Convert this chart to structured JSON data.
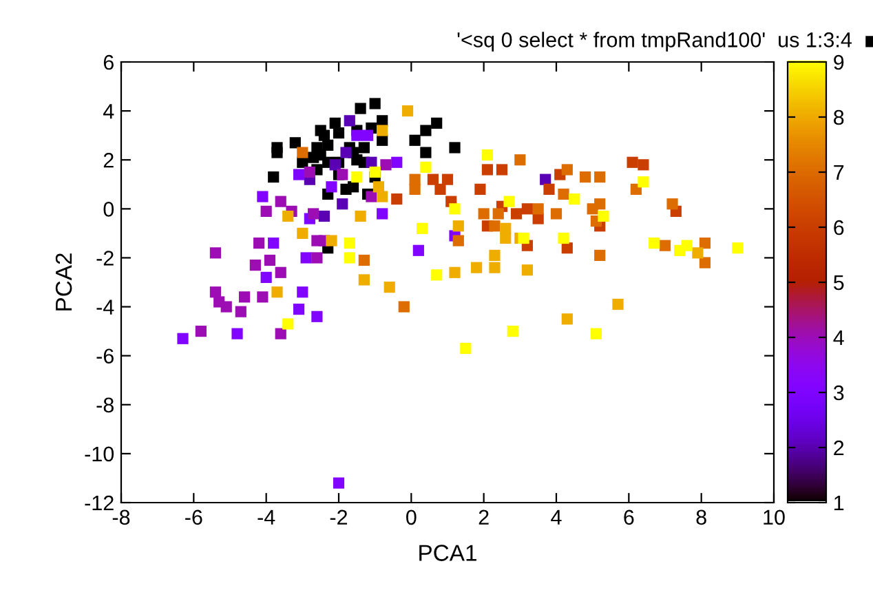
{
  "chart_data": {
    "type": "scatter",
    "xlabel": "PCA1",
    "ylabel": "PCA2",
    "xlim": [
      -8,
      10
    ],
    "ylim": [
      -12,
      6
    ],
    "xticks": [
      -8,
      -6,
      -4,
      -2,
      0,
      2,
      4,
      6,
      8,
      10
    ],
    "yticks": [
      -12,
      -10,
      -8,
      -6,
      -4,
      -2,
      0,
      2,
      4,
      6
    ],
    "clim": [
      1,
      9
    ],
    "cticks": [
      1,
      2,
      3,
      4,
      5,
      6,
      7,
      8,
      9
    ],
    "marker": "square",
    "grid": false,
    "legend": "top right",
    "series": [
      {
        "name": "'<sq 0 select * from tmpRand100'  us 1:3:4",
        "x": [
          -1.0,
          -1.4,
          -2.1,
          -0.8,
          -1.1,
          -1.5,
          -2.5,
          -2.0,
          -2.4,
          -3.2,
          -2.3,
          -3.7,
          -3.7,
          -2.6,
          -1.7,
          -1.3,
          -0.8,
          0.1,
          0.4,
          0.7,
          0.4,
          1.2,
          -3.0,
          -2.7,
          -2.5,
          -2.3,
          -2.0,
          -1.6,
          -1.5,
          -1.3,
          -2.6,
          -2.0,
          -1.0,
          -3.8,
          -1.6,
          -1.8,
          -2.3,
          -1.2,
          -2.3,
          -1.7,
          -2.8,
          -2.1,
          -1.1,
          -2.4,
          -1.9,
          -1.8,
          3.7,
          -1.5,
          -1.2,
          -3.1,
          -0.4,
          -2.2,
          -4.1,
          -2.8,
          -0.8,
          -3.8,
          -2.9,
          -4.0,
          0.2,
          1.2,
          -3.0,
          -3.1,
          -2.6,
          -4.8,
          -6.3,
          -2.0,
          -0.7,
          -1.9,
          -2.8,
          -3.6,
          -3.3,
          -4.0,
          -2.7,
          -1.1,
          -5.4,
          -4.2,
          -2.6,
          -2.4,
          -2.6,
          -4.3,
          -3.9,
          -3.6,
          -5.4,
          -5.3,
          -5.1,
          -4.6,
          -4.7,
          -4.1,
          -3.6,
          -5.8,
          0.6,
          1.0,
          0.8,
          1.1,
          -0.4,
          2.1,
          2.5,
          1.9,
          2.5,
          2.9,
          3.2,
          3.5,
          2.1,
          3.2,
          4.1,
          3.8,
          5.2,
          4.3,
          6.1,
          6.4,
          7.3,
          -3.0,
          0.1,
          0.1,
          -1.3,
          -0.2,
          3.0,
          1.3,
          2.0,
          2.4,
          3.5,
          2.3,
          4.3,
          4.8,
          5.2,
          4.2,
          4.0,
          5.2,
          5.0,
          5.1,
          5.2,
          6.2,
          7.2,
          7.0,
          8.1,
          8.1,
          -0.1,
          -0.8,
          -0.9,
          -0.8,
          -3.4,
          -1.4,
          -3.0,
          -2.2,
          -1.3,
          -0.6,
          -3.7,
          1.3,
          2.6,
          2.6,
          3.0,
          2.3,
          1.2,
          1.8,
          2.3,
          3.2,
          7.9,
          5.7,
          4.3,
          0.4,
          -1.5,
          -1.0,
          0.3,
          -1.7,
          -1.7,
          0.7,
          -3.4,
          2.1,
          1.2,
          2.7,
          3.1,
          4.5,
          5.3,
          4.2,
          6.4,
          6.7,
          7.4,
          7.6,
          9.0,
          2.8,
          5.1,
          1.5
        ],
        "values": [
          4.3,
          4.1,
          3.5,
          3.6,
          3.3,
          3.2,
          3.2,
          3.1,
          3.0,
          2.7,
          2.6,
          2.5,
          2.3,
          2.5,
          2.5,
          2.5,
          2.8,
          2.8,
          3.2,
          3.5,
          2.3,
          2.5,
          1.9,
          2.1,
          2.2,
          1.9,
          1.9,
          2.3,
          2.0,
          1.9,
          1.6,
          1.4,
          1.3,
          1.3,
          0.9,
          0.8,
          0.6,
          0.6,
          -1.6,
          3.6,
          1.2,
          1.8,
          1.9,
          -0.3,
          0.2,
          2.3,
          1.2,
          3.0,
          3.0,
          1.4,
          1.9,
          0.9,
          0.5,
          -0.4,
          -0.2,
          -1.4,
          -2.0,
          -2.8,
          -1.7,
          -1.1,
          -3.4,
          -4.1,
          -4.4,
          -5.1,
          -5.3,
          -11.2,
          1.8,
          1.4,
          1.5,
          0.3,
          -0.1,
          -0.1,
          -0.2,
          0.5,
          -1.8,
          -1.4,
          -1.3,
          -1.3,
          -2.0,
          -2.3,
          -2.1,
          -2.6,
          -3.4,
          -3.8,
          -4.0,
          -3.6,
          -4.2,
          -3.6,
          -5.1,
          -5.0,
          1.2,
          1.2,
          0.8,
          0.3,
          0.4,
          1.6,
          1.6,
          0.8,
          0.1,
          -0.2,
          0.0,
          -0.4,
          -0.7,
          -1.5,
          1.4,
          0.8,
          -0.7,
          -1.6,
          1.9,
          1.8,
          -0.1,
          2.3,
          1.2,
          0.8,
          -2.1,
          -4.0,
          2.0,
          -1.3,
          -0.2,
          -0.2,
          0.0,
          -0.7,
          1.6,
          1.3,
          1.3,
          0.6,
          -0.2,
          0.2,
          0.0,
          -0.5,
          -1.9,
          0.8,
          0.2,
          -1.5,
          -1.4,
          -2.2,
          4.0,
          3.2,
          0.9,
          0.5,
          -0.3,
          -0.3,
          -1.0,
          -1.3,
          -2.9,
          -3.2,
          -3.4,
          -0.7,
          -0.8,
          -1.2,
          -1.2,
          -1.9,
          -2.6,
          -2.4,
          -2.4,
          -2.5,
          -1.8,
          -3.9,
          -4.5,
          1.7,
          1.3,
          1.5,
          -0.8,
          -1.4,
          -2.0,
          -2.7,
          -4.7,
          2.2,
          0.0,
          0.3,
          -1.2,
          0.4,
          -0.3,
          -1.2,
          1.1,
          -1.4,
          -1.7,
          -1.5,
          -1.6,
          -5.0,
          -5.1,
          -5.7
        ],
        "cvalues": [
          1,
          1,
          1,
          1,
          1,
          1,
          1,
          1,
          1,
          1,
          1,
          1,
          1,
          1,
          1,
          1,
          1,
          1,
          1,
          1,
          1,
          1,
          1,
          1,
          1,
          1,
          1,
          1,
          1,
          1,
          1,
          1,
          1,
          1,
          1,
          1,
          1,
          1,
          1,
          2,
          2,
          2,
          2,
          2,
          2,
          2,
          2,
          3,
          3,
          3,
          3,
          3,
          3,
          3,
          3,
          3,
          3,
          3,
          3,
          3,
          3,
          3,
          3,
          3,
          3,
          3,
          4,
          4,
          4,
          4,
          4,
          4,
          4,
          4,
          4,
          4,
          4,
          4,
          4,
          4,
          4,
          4,
          4,
          4,
          4,
          4,
          4,
          4,
          4,
          4,
          6,
          6,
          6,
          6,
          6,
          6,
          6,
          6,
          6,
          6,
          6,
          6,
          6,
          6,
          6,
          6,
          6,
          6,
          6,
          6,
          6,
          7,
          7,
          7,
          7,
          7,
          7,
          7,
          7,
          7,
          7,
          7,
          7,
          7,
          7,
          7,
          7,
          7,
          7,
          7,
          7,
          7,
          7,
          7,
          7,
          7,
          8,
          8,
          8,
          8,
          8,
          8,
          8,
          8,
          8,
          8,
          8,
          8,
          8,
          8,
          8,
          8,
          8,
          8,
          8,
          8,
          8,
          8,
          8,
          9,
          9,
          9,
          9,
          9,
          9,
          9,
          9,
          9,
          9,
          9,
          9,
          9,
          9,
          9,
          9,
          9,
          9,
          9,
          9,
          9,
          9,
          9
        ]
      }
    ]
  }
}
